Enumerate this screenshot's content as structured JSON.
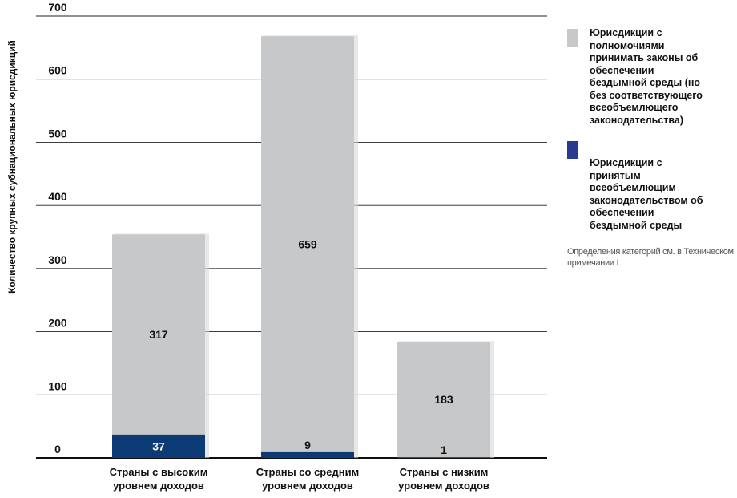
{
  "chart_data": {
    "type": "bar",
    "stacked": true,
    "categories": [
      "Страны с высоким\nуровнем доходов",
      "Страны со средним\nуровнем доходов",
      "Страны с низким\nуровнем доходов"
    ],
    "series": [
      {
        "name": "Юрисдикции с\nпринятым\nвсеобъемлющим\nзаконодательством об\nобеспечении\nбездымной среды",
        "values": [
          37,
          9,
          1
        ],
        "color": "#0b3a75"
      },
      {
        "name": "Юрисдикции с\nполномочиями\nпринимать законы об\nобеспечении\nбездымной среды (но\nбез соответствующего\nвсеобъемлющего\nзаконодательства)",
        "values": [
          317,
          659,
          183
        ],
        "color": "#c7c8ca"
      }
    ],
    "data_labels": [
      [
        37,
        9,
        1
      ],
      [
        317,
        659,
        183
      ]
    ],
    "ylabel": "Количество крупных субнациональных юрисдикций",
    "xlabel": "",
    "ylim": [
      0,
      700
    ],
    "yticks": [
      0,
      100,
      200,
      300,
      400,
      500,
      600,
      700
    ],
    "grid": true,
    "legend_position": "right"
  },
  "note": "Определения категорий см. в Техническом\nпримечании I"
}
